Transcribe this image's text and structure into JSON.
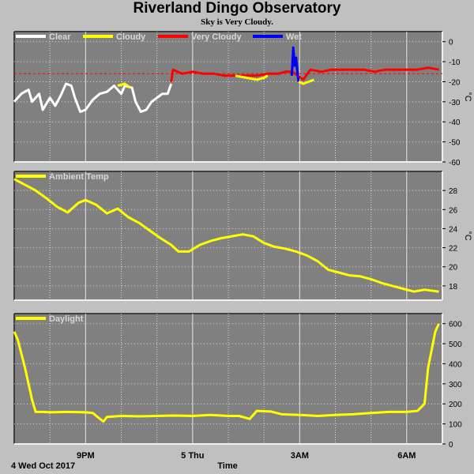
{
  "header": {
    "title": "Riverland Dingo Observatory",
    "subtitle": "Sky is Very Cloudy."
  },
  "x_axis": {
    "label": "Time",
    "date_label": "4 Wed Oct 2017",
    "ticks": [
      {
        "t": 21,
        "label": "9PM"
      },
      {
        "t": 24,
        "label": "5 Thu"
      },
      {
        "t": 27,
        "label": "3AM"
      },
      {
        "t": 30,
        "label": "6AM"
      }
    ],
    "range": [
      19.0,
      31.0
    ]
  },
  "colors": {
    "plot_bg": "#808080",
    "grid": "#ffffff",
    "clear": "#ffffff",
    "cloudy": "#ffff00",
    "very_cloudy": "#ff0000",
    "wet": "#0000ff",
    "threshold": "#ff0000"
  },
  "chart_data": [
    {
      "type": "line",
      "ylabel": "°C",
      "ylim": [
        -60,
        5
      ],
      "yticks": [
        0,
        -10,
        -20,
        -30,
        -40,
        -50,
        -60
      ],
      "threshold": -16,
      "legend": [
        "Clear",
        "Cloudy",
        "Very Cloudy",
        "Wet"
      ],
      "series": [
        {
          "name": "Clear",
          "color_key": "clear",
          "x": [
            19.0,
            19.2,
            19.4,
            19.5,
            19.7,
            19.8,
            20.0,
            20.15,
            20.3,
            20.45,
            20.6,
            20.7,
            20.85,
            21.0,
            21.2,
            21.4,
            21.6,
            21.8,
            22.0,
            22.1,
            22.3,
            22.4,
            22.55,
            22.7,
            22.85,
            23.0,
            23.15,
            23.3,
            23.4
          ],
          "y": [
            -30,
            -26,
            -24,
            -30,
            -26,
            -34,
            -28,
            -32,
            -27,
            -21,
            -22,
            -28,
            -35,
            -34,
            -29,
            -26,
            -25,
            -22,
            -26,
            -22,
            -23,
            -30,
            -35,
            -34,
            -30,
            -28,
            -26,
            -26,
            -21
          ]
        },
        {
          "name": "Cloudy",
          "color_key": "cloudy",
          "x": [
            21.9,
            22.1,
            22.25
          ],
          "y": [
            -22,
            -21,
            -23
          ]
        },
        {
          "name": "Very Cloudy",
          "color_key": "very_cloudy",
          "x": [
            23.4,
            23.45,
            23.7,
            24.0,
            24.3,
            24.6,
            24.9,
            25.2,
            25.5,
            25.8,
            26.1,
            26.4,
            26.6,
            26.8,
            27.1,
            27.3,
            27.6,
            27.9,
            28.2,
            28.5,
            28.8,
            29.1,
            29.4,
            29.7,
            30.0,
            30.3,
            30.6,
            30.9
          ],
          "y": [
            -20,
            -14,
            -16,
            -15,
            -16,
            -16,
            -17,
            -17,
            -17,
            -17,
            -16,
            -16,
            -15,
            -15,
            -19,
            -14,
            -15,
            -14,
            -14,
            -14,
            -14,
            -15,
            -14,
            -14,
            -14,
            -14,
            -13,
            -14
          ]
        },
        {
          "name": "Cloudy",
          "color_key": "cloudy",
          "x": [
            25.2,
            25.5,
            25.8,
            26.0,
            26.1
          ],
          "y": [
            -17,
            -18,
            -19,
            -18,
            -17
          ]
        },
        {
          "name": "Wet",
          "color_key": "wet",
          "x": [
            26.78,
            26.82,
            26.86,
            26.9,
            26.94,
            26.97
          ],
          "y": [
            -17,
            -3,
            -12,
            -8,
            -16,
            -20
          ]
        },
        {
          "name": "Cloudy",
          "color_key": "cloudy",
          "x": [
            26.97,
            27.1,
            27.25,
            27.4
          ],
          "y": [
            -20,
            -21,
            -20,
            -19
          ]
        }
      ]
    },
    {
      "type": "line",
      "ylabel": "°C",
      "ylim": [
        16.5,
        30
      ],
      "yticks": [
        18,
        20,
        22,
        24,
        26,
        28
      ],
      "legend": [
        "Ambient Temp"
      ],
      "series": [
        {
          "name": "Ambient Temp",
          "color_key": "cloudy",
          "x": [
            19.0,
            19.3,
            19.6,
            19.9,
            20.2,
            20.5,
            20.8,
            21.0,
            21.3,
            21.6,
            21.9,
            22.2,
            22.5,
            22.8,
            23.1,
            23.4,
            23.6,
            23.9,
            24.2,
            24.5,
            24.8,
            25.1,
            25.4,
            25.7,
            26.0,
            26.3,
            26.6,
            26.9,
            27.2,
            27.5,
            27.8,
            28.1,
            28.4,
            28.7,
            29.0,
            29.3,
            29.6,
            29.9,
            30.2,
            30.5,
            30.9
          ],
          "y": [
            29.2,
            28.6,
            28.0,
            27.2,
            26.3,
            25.7,
            26.7,
            27.0,
            26.5,
            25.6,
            26.1,
            25.2,
            24.6,
            23.8,
            23.0,
            22.3,
            21.6,
            21.6,
            22.3,
            22.7,
            23.0,
            23.2,
            23.4,
            23.2,
            22.5,
            22.1,
            21.9,
            21.6,
            21.2,
            20.6,
            19.7,
            19.4,
            19.1,
            19.0,
            18.7,
            18.3,
            18.0,
            17.7,
            17.4,
            17.6,
            17.4
          ]
        }
      ]
    },
    {
      "type": "line",
      "ylim": [
        0,
        650
      ],
      "yticks": [
        0,
        100,
        200,
        300,
        400,
        500,
        600
      ],
      "legend": [
        "Daylight"
      ],
      "series": [
        {
          "name": "Daylight",
          "color_key": "cloudy",
          "x": [
            19.0,
            19.1,
            19.3,
            19.5,
            19.6,
            19.8,
            20.0,
            20.5,
            21.0,
            21.2,
            21.3,
            21.5,
            21.6,
            22.0,
            22.5,
            23.0,
            23.5,
            24.0,
            24.5,
            25.0,
            25.3,
            25.6,
            25.8,
            26.2,
            26.5,
            27.0,
            27.5,
            28.0,
            28.5,
            29.0,
            29.5,
            30.0,
            30.3,
            30.5,
            30.6,
            30.8,
            30.9
          ],
          "y": [
            560,
            520,
            380,
            220,
            160,
            160,
            158,
            160,
            158,
            155,
            140,
            112,
            135,
            140,
            138,
            140,
            142,
            140,
            145,
            140,
            140,
            125,
            165,
            162,
            148,
            145,
            140,
            145,
            148,
            155,
            160,
            160,
            165,
            200,
            380,
            560,
            600
          ]
        }
      ]
    }
  ]
}
